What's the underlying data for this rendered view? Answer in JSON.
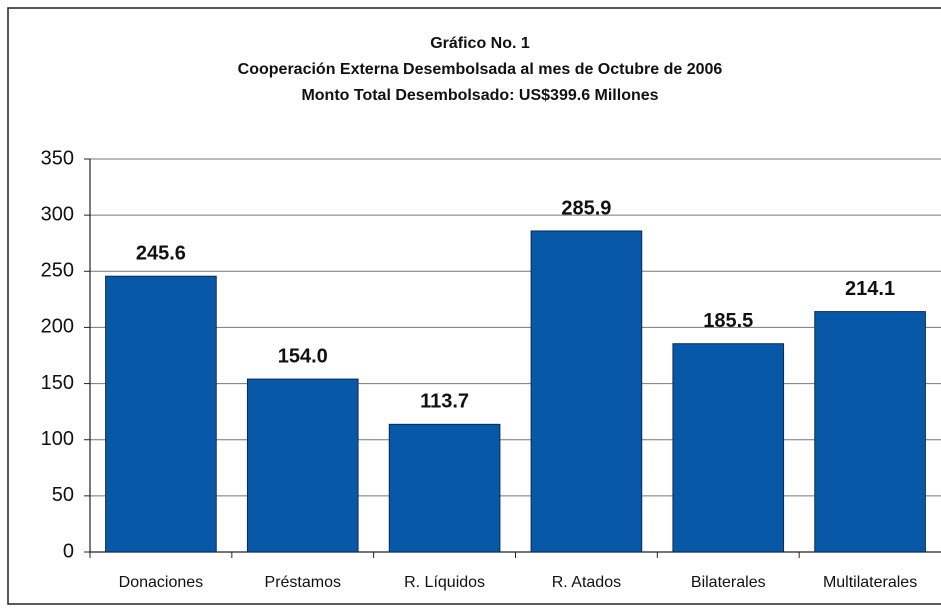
{
  "chart_data": {
    "type": "bar",
    "title_lines": [
      "Gráfico No. 1",
      "Cooperación Externa Desembolsada al mes de Octubre de 2006",
      "Monto Total Desembolsado: US$399.6 Millones"
    ],
    "categories": [
      "Donaciones",
      "Préstamos",
      "R. Líquidos",
      "R. Atados",
      "Bilaterales",
      "Multilaterales"
    ],
    "values": [
      245.6,
      154.0,
      113.7,
      285.9,
      185.5,
      214.1
    ],
    "value_labels": [
      "245.6",
      "154.0",
      "113.7",
      "285.9",
      "185.5",
      "214.1"
    ],
    "color": "#0759a8",
    "ylim": [
      0,
      350
    ],
    "yticks": [
      0,
      50,
      100,
      150,
      200,
      250,
      300,
      350
    ],
    "grid": true
  }
}
